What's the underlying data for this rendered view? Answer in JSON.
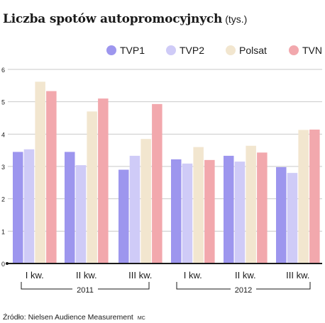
{
  "chart_data": {
    "type": "bar",
    "title": "Liczba spotów autopromocyjnych",
    "subtitle": "(tys.)",
    "categories": [
      "I kw.",
      "II kw.",
      "III kw.",
      "I kw.",
      "II kw.",
      "III kw."
    ],
    "groups": [
      {
        "label": "2011",
        "categories": [
          0,
          1,
          2
        ]
      },
      {
        "label": "2012",
        "categories": [
          3,
          4,
          5
        ]
      }
    ],
    "series": [
      {
        "name": "TVP1",
        "color": "#9d96ee",
        "values": [
          3.45,
          3.45,
          2.9,
          3.22,
          3.33,
          2.98
        ]
      },
      {
        "name": "TVP2",
        "color": "#cfcbf7",
        "values": [
          3.53,
          3.04,
          3.33,
          3.09,
          3.15,
          2.8
        ]
      },
      {
        "name": "Polsat",
        "color": "#f2e6cf",
        "values": [
          5.62,
          4.7,
          3.85,
          3.6,
          3.64,
          4.13
        ]
      },
      {
        "name": "TVN",
        "color": "#f2a8ad",
        "values": [
          5.33,
          5.1,
          4.93,
          3.2,
          3.43,
          4.14
        ]
      }
    ],
    "yticks": [
      0,
      1,
      2,
      3,
      4,
      5,
      6
    ],
    "ylim": [
      0,
      6
    ],
    "grid": true,
    "legend": "top-right"
  },
  "source": "Źródło: Nielsen Audience Measurement",
  "credit": "MC"
}
